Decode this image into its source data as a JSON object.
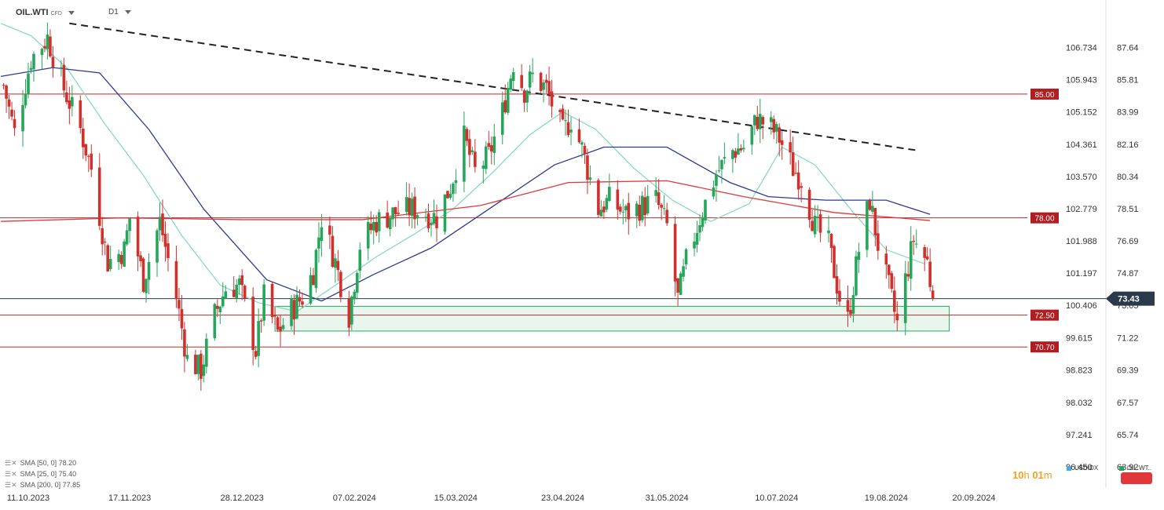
{
  "header": {
    "symbol": "OIL.WTI",
    "symbol_suffix": "CFD",
    "timeframe": "D1"
  },
  "chart_data": {
    "type": "candlestick",
    "instrument": "OIL.WTI",
    "timeframe": "D1",
    "x_ticks": [
      "11.10.2023",
      "17.11.2023",
      "28.12.2023",
      "07.02.2024",
      "15.03.2024",
      "23.04.2024",
      "31.05.2024",
      "10.07.2024",
      "19.08.2024",
      "20.09.2024"
    ],
    "left_axis": {
      "series": "OIL.WTI",
      "ticks": [
        "87.64",
        "85.81",
        "83.99",
        "82.16",
        "80.34",
        "78.51",
        "76.69",
        "74.87",
        "73.05",
        "71.22",
        "69.39",
        "67.57",
        "65.74",
        "63.92"
      ]
    },
    "right_axis": {
      "series": "USDIDX",
      "ticks": [
        "106.734",
        "105.943",
        "105.152",
        "104.361",
        "103.570",
        "102.779",
        "101.988",
        "101.197",
        "100.406",
        "99.615",
        "98.823",
        "98.032",
        "97.241",
        "96.450"
      ]
    },
    "ylim": [
      62.9,
      89.7
    ],
    "current_price": "73.43",
    "levels": [
      {
        "value": 85.0,
        "label": "85.00"
      },
      {
        "value": 78.0,
        "label": "78.00"
      },
      {
        "value": 72.5,
        "label": "72.50"
      },
      {
        "value": 70.7,
        "label": "70.70"
      }
    ],
    "trendline": [
      {
        "x": "2023-10-26",
        "y": 89.0
      },
      {
        "x": "2024-08-31",
        "y": 81.8
      }
    ],
    "support_zone": {
      "from": "2024-01-09",
      "to": "2024-09-11",
      "low": 71.6,
      "high": 73.0
    },
    "sma_legend": [
      "SMA [50, 0] 78.20",
      "SMA [25, 0] 75.40",
      "SMA [200, 0] 77.85"
    ],
    "sma_colors": {
      "sma50": "#2e3a8c",
      "sma25": "#7fd8be",
      "sma200": "#e0383a"
    },
    "candle_colors": {
      "up": "#26a65b",
      "down": "#d0312d"
    },
    "ohlc_path": [
      {
        "d": "2023-10-02",
        "c": 85.5
      },
      {
        "d": "2023-10-06",
        "c": 82.8
      },
      {
        "d": "2023-10-12",
        "c": 87.0
      },
      {
        "d": "2023-10-18",
        "c": 88.2
      },
      {
        "d": "2023-10-24",
        "c": 85.3
      },
      {
        "d": "2023-10-30",
        "c": 83.0
      },
      {
        "d": "2023-11-03",
        "c": 80.8
      },
      {
        "d": "2023-11-09",
        "c": 75.5
      },
      {
        "d": "2023-11-15",
        "c": 76.2
      },
      {
        "d": "2023-11-17",
        "c": 78.0
      },
      {
        "d": "2023-11-22",
        "c": 74.5
      },
      {
        "d": "2023-11-28",
        "c": 77.8
      },
      {
        "d": "2023-12-04",
        "c": 73.5
      },
      {
        "d": "2023-12-08",
        "c": 70.0
      },
      {
        "d": "2023-12-13",
        "c": 69.4
      },
      {
        "d": "2023-12-18",
        "c": 72.5
      },
      {
        "d": "2023-12-22",
        "c": 74.0
      },
      {
        "d": "2023-12-27",
        "c": 74.2
      },
      {
        "d": "2024-01-02",
        "c": 70.5
      },
      {
        "d": "2024-01-05",
        "c": 73.5
      },
      {
        "d": "2024-01-10",
        "c": 71.5
      },
      {
        "d": "2024-01-15",
        "c": 72.8
      },
      {
        "d": "2024-01-19",
        "c": 73.5
      },
      {
        "d": "2024-01-23",
        "c": 75.0
      },
      {
        "d": "2024-01-26",
        "c": 78.0
      },
      {
        "d": "2024-01-31",
        "c": 75.5
      },
      {
        "d": "2024-02-05",
        "c": 72.5
      },
      {
        "d": "2024-02-09",
        "c": 76.5
      },
      {
        "d": "2024-02-15",
        "c": 77.8
      },
      {
        "d": "2024-02-22",
        "c": 78.3
      },
      {
        "d": "2024-02-28",
        "c": 78.5
      },
      {
        "d": "2024-03-05",
        "c": 78.2
      },
      {
        "d": "2024-03-08",
        "c": 78.0
      },
      {
        "d": "2024-03-13",
        "c": 79.8
      },
      {
        "d": "2024-03-18",
        "c": 82.5
      },
      {
        "d": "2024-03-22",
        "c": 80.6
      },
      {
        "d": "2024-03-27",
        "c": 81.5
      },
      {
        "d": "2024-04-01",
        "c": 84.0
      },
      {
        "d": "2024-04-05",
        "c": 86.8
      },
      {
        "d": "2024-04-09",
        "c": 85.2
      },
      {
        "d": "2024-04-12",
        "c": 86.0
      },
      {
        "d": "2024-04-17",
        "c": 85.3
      },
      {
        "d": "2024-04-23",
        "c": 82.8
      },
      {
        "d": "2024-04-26",
        "c": 83.6
      },
      {
        "d": "2024-04-30",
        "c": 81.9
      },
      {
        "d": "2024-05-06",
        "c": 78.5
      },
      {
        "d": "2024-05-10",
        "c": 79.0
      },
      {
        "d": "2024-05-16",
        "c": 78.2
      },
      {
        "d": "2024-05-21",
        "c": 78.6
      },
      {
        "d": "2024-05-27",
        "c": 79.0
      },
      {
        "d": "2024-05-31",
        "c": 77.5
      },
      {
        "d": "2024-06-04",
        "c": 73.4
      },
      {
        "d": "2024-06-07",
        "c": 75.5
      },
      {
        "d": "2024-06-12",
        "c": 78.0
      },
      {
        "d": "2024-06-18",
        "c": 80.5
      },
      {
        "d": "2024-06-24",
        "c": 81.8
      },
      {
        "d": "2024-06-28",
        "c": 82.0
      },
      {
        "d": "2024-07-03",
        "c": 83.6
      },
      {
        "d": "2024-07-08",
        "c": 83.1
      },
      {
        "d": "2024-07-11",
        "c": 82.5
      },
      {
        "d": "2024-07-16",
        "c": 80.8
      },
      {
        "d": "2024-07-19",
        "c": 80.2
      },
      {
        "d": "2024-07-24",
        "c": 77.5
      },
      {
        "d": "2024-07-29",
        "c": 76.5
      },
      {
        "d": "2024-08-02",
        "c": 73.5
      },
      {
        "d": "2024-08-05",
        "c": 72.2
      },
      {
        "d": "2024-08-09",
        "c": 76.2
      },
      {
        "d": "2024-08-13",
        "c": 79.0
      },
      {
        "d": "2024-08-16",
        "c": 76.5
      },
      {
        "d": "2024-08-20",
        "c": 74.0
      },
      {
        "d": "2024-08-23",
        "c": 72.0
      },
      {
        "d": "2024-08-26",
        "c": 74.5
      },
      {
        "d": "2024-08-29",
        "c": 76.8
      },
      {
        "d": "2024-09-03",
        "c": 75.5
      },
      {
        "d": "2024-09-05",
        "c": 73.4
      }
    ],
    "sma_paths": {
      "sma25": [
        {
          "d": "2023-10-01",
          "v": 89.0
        },
        {
          "d": "2023-10-12",
          "v": 88.3
        },
        {
          "d": "2023-10-25",
          "v": 86.5
        },
        {
          "d": "2023-11-08",
          "v": 83.3
        },
        {
          "d": "2023-11-22",
          "v": 80.4
        },
        {
          "d": "2023-12-06",
          "v": 77.0
        },
        {
          "d": "2023-12-20",
          "v": 74.2
        },
        {
          "d": "2024-01-03",
          "v": 73.2
        },
        {
          "d": "2024-01-17",
          "v": 72.7
        },
        {
          "d": "2024-02-01",
          "v": 74.3
        },
        {
          "d": "2024-02-15",
          "v": 75.8
        },
        {
          "d": "2024-02-29",
          "v": 77.1
        },
        {
          "d": "2024-03-14",
          "v": 78.5
        },
        {
          "d": "2024-03-28",
          "v": 80.5
        },
        {
          "d": "2024-04-11",
          "v": 82.7
        },
        {
          "d": "2024-04-23",
          "v": 84.0
        },
        {
          "d": "2024-05-05",
          "v": 83.0
        },
        {
          "d": "2024-05-19",
          "v": 80.8
        },
        {
          "d": "2024-06-02",
          "v": 79.0
        },
        {
          "d": "2024-06-16",
          "v": 77.8
        },
        {
          "d": "2024-06-30",
          "v": 78.8
        },
        {
          "d": "2024-07-12",
          "v": 82.0
        },
        {
          "d": "2024-07-24",
          "v": 81.0
        },
        {
          "d": "2024-08-07",
          "v": 78.3
        },
        {
          "d": "2024-08-19",
          "v": 76.2
        },
        {
          "d": "2024-09-02",
          "v": 75.4
        }
      ],
      "sma50": [
        {
          "d": "2023-10-01",
          "v": 86.0
        },
        {
          "d": "2023-10-20",
          "v": 86.5
        },
        {
          "d": "2023-11-06",
          "v": 86.2
        },
        {
          "d": "2023-11-24",
          "v": 83.0
        },
        {
          "d": "2023-12-14",
          "v": 78.5
        },
        {
          "d": "2024-01-06",
          "v": 74.5
        },
        {
          "d": "2024-01-26",
          "v": 73.3
        },
        {
          "d": "2024-02-14",
          "v": 74.8
        },
        {
          "d": "2024-03-06",
          "v": 76.3
        },
        {
          "d": "2024-03-28",
          "v": 78.6
        },
        {
          "d": "2024-04-20",
          "v": 81.0
        },
        {
          "d": "2024-05-08",
          "v": 82.0
        },
        {
          "d": "2024-05-31",
          "v": 82.0
        },
        {
          "d": "2024-06-23",
          "v": 80.0
        },
        {
          "d": "2024-07-07",
          "v": 79.2
        },
        {
          "d": "2024-07-28",
          "v": 79.0
        },
        {
          "d": "2024-08-19",
          "v": 79.0
        },
        {
          "d": "2024-09-04",
          "v": 78.2
        }
      ],
      "sma200": [
        {
          "d": "2023-10-01",
          "v": 77.8
        },
        {
          "d": "2023-11-14",
          "v": 78.0
        },
        {
          "d": "2023-12-28",
          "v": 77.9
        },
        {
          "d": "2024-02-10",
          "v": 77.9
        },
        {
          "d": "2024-03-24",
          "v": 78.7
        },
        {
          "d": "2024-04-25",
          "v": 80.0
        },
        {
          "d": "2024-05-31",
          "v": 80.1
        },
        {
          "d": "2024-06-28",
          "v": 79.2
        },
        {
          "d": "2024-07-31",
          "v": 78.3
        },
        {
          "d": "2024-09-04",
          "v": 77.85
        }
      ]
    }
  },
  "footer": {
    "timer_hours": "10",
    "timer_h": "h",
    "timer_minutes": "01",
    "timer_m": "m",
    "tag_usdidx": "USDIDX",
    "tag_oil": "OIL.WT.."
  }
}
